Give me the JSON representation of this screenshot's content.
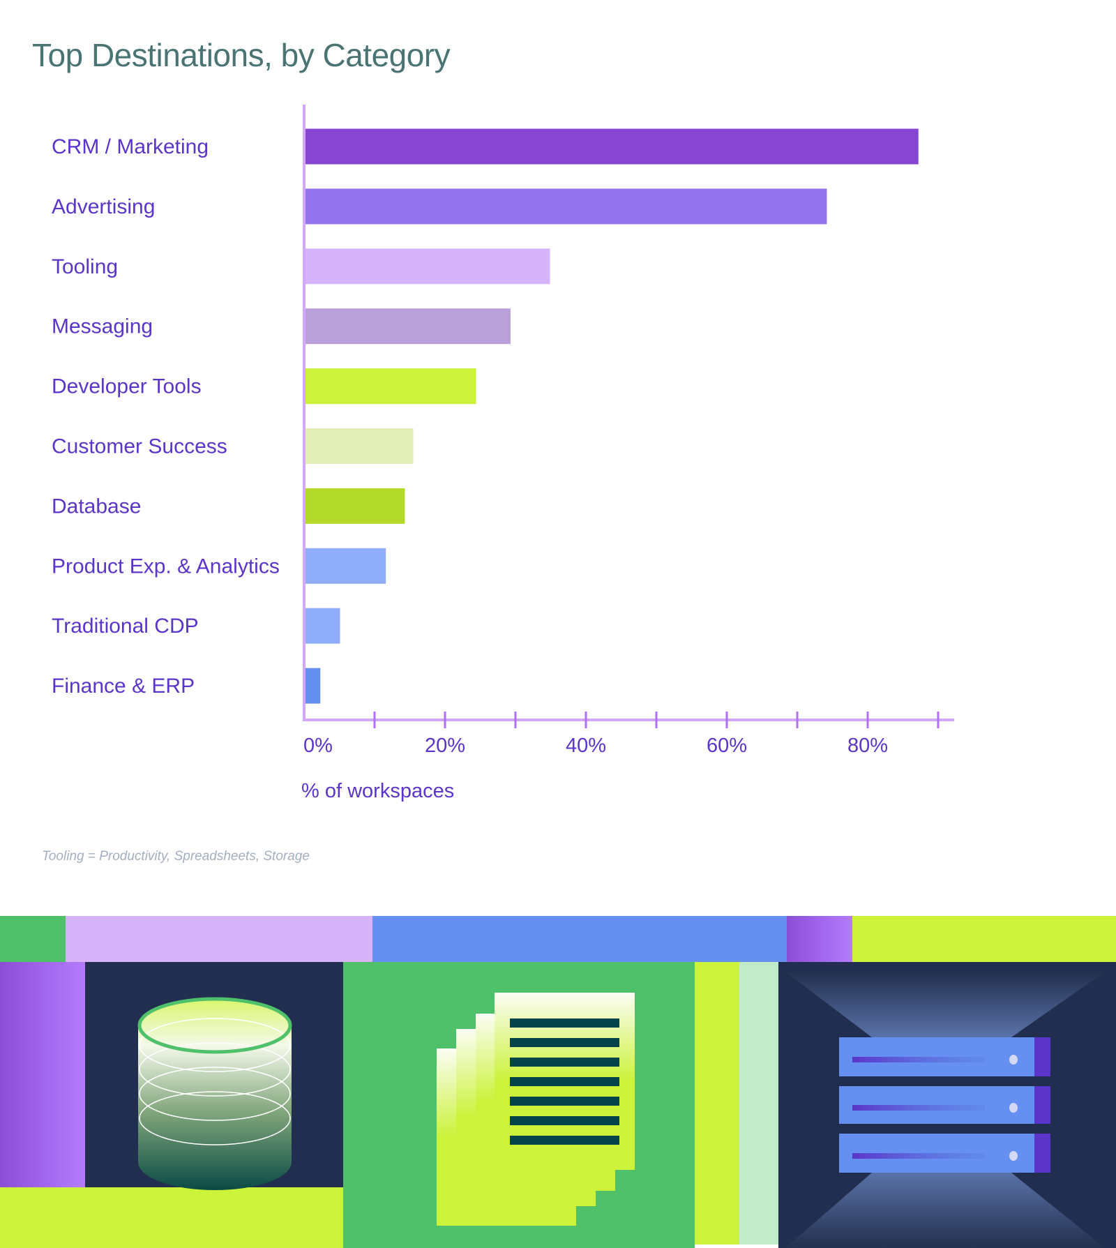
{
  "chart_data": {
    "type": "bar",
    "orientation": "horizontal",
    "title": "Top Destinations, by Category",
    "xlabel": "% of workspaces",
    "ylabel": "",
    "xlim": [
      0,
      90
    ],
    "x_ticks": [
      "0%",
      "20%",
      "40%",
      "60%",
      "80%"
    ],
    "minor_tick_step": 10,
    "grid": false,
    "categories": [
      "CRM / Marketing",
      "Advertising",
      "Tooling",
      "Messaging",
      "Developer Tools",
      "Customer Success",
      "Database",
      "Product Exp. & Analytics",
      "Traditional CDP",
      "Finance & ERP"
    ],
    "values": [
      87.2,
      74.2,
      34.9,
      29.3,
      24.4,
      15.5,
      14.3,
      11.6,
      5.1,
      2.3
    ],
    "colors": [
      "#8745d4",
      "#9575ef",
      "#d6b3fb",
      "#b9a0d8",
      "#ccf23a",
      "#e4efb8",
      "#b3d929",
      "#8fadfa",
      "#8fadfa",
      "#6590f2"
    ],
    "axis_color": "#d2a8fa",
    "tick_color": "#b26ef5",
    "label_color": "#5b35c9",
    "footnote": "Tooling = Productivity, Spreadsheets, Storage"
  }
}
